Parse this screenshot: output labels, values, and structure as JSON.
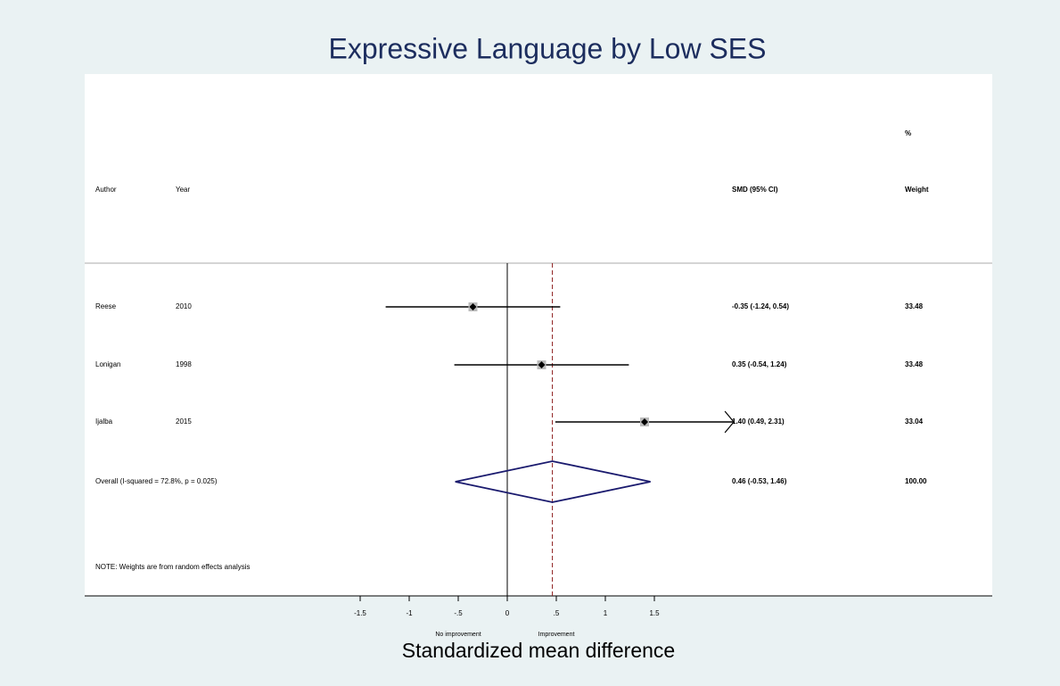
{
  "chart_data": {
    "type": "forest",
    "title": "Expressive Language by Low SES",
    "x_label": "Standardized mean difference",
    "left_label": "No improvement",
    "right_label": "Improvement",
    "columns": {
      "author": "Author",
      "year": "Year",
      "ci": "SMD (95% CI)",
      "weight_top": "%",
      "weight": "Weight"
    },
    "rows": [
      {
        "author": "Reese",
        "year": "2010",
        "smd": -0.35,
        "lower": -1.24,
        "upper": 0.54,
        "value_label": "-0.35 (-1.24, 0.54)",
        "weight": 33.48
      },
      {
        "author": "Lonigan",
        "year": "1998",
        "smd": 0.35,
        "lower": -0.54,
        "upper": 1.24,
        "value_label": "0.35 (-0.54, 1.24)",
        "weight": 33.48
      },
      {
        "author": "Ijalba",
        "year": "2015",
        "smd": 1.4,
        "lower": 0.49,
        "upper": 2.31,
        "value_label": "1.40 (0.49, 2.31)",
        "weight": 33.04
      }
    ],
    "overall": {
      "label": "Overall  (I-squared = 72.8%, p = 0.025)",
      "smd": 0.46,
      "lower": -0.53,
      "upper": 1.46,
      "value_label": "0.46 (-0.53, 1.46)",
      "weight": {
        "value": 100,
        "label": "100.00"
      }
    },
    "note": "NOTE: Weights are from random effects analysis",
    "xlim": [
      -1.5,
      1.5
    ],
    "xticks": [
      -1.5,
      -1,
      {
        "value": -0.5,
        "label": "-.5"
      },
      0,
      {
        "value": 0.5,
        "label": ".5"
      },
      1,
      1.5
    ],
    "diamond_color": "#1a1a6e",
    "overall_line_color": "#8b1a1a"
  }
}
